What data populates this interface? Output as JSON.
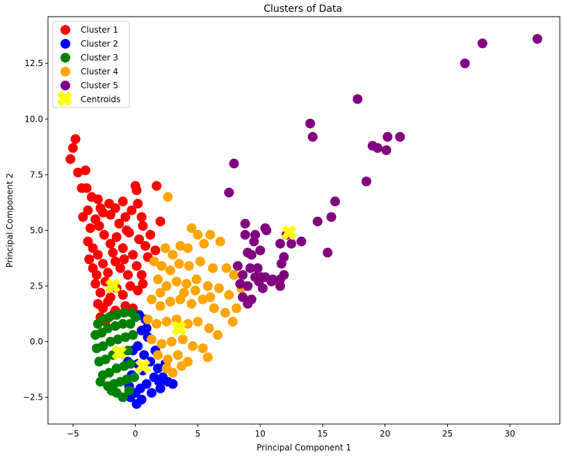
{
  "chart_data": {
    "type": "scatter",
    "title": "Clusters of Data",
    "xlabel": "Principal Component 1",
    "ylabel": "Principal Component 2",
    "xlim": [
      -7.0,
      34.0
    ],
    "ylim": [
      -3.7,
      14.6
    ],
    "xticks": [
      -5,
      0,
      5,
      10,
      15,
      20,
      25,
      30
    ],
    "xtick_labels": [
      "−5",
      "0",
      "5",
      "10",
      "15",
      "20",
      "25",
      "30"
    ],
    "yticks": [
      -2.5,
      0.0,
      2.5,
      5.0,
      7.5,
      10.0,
      12.5
    ],
    "ytick_labels": [
      "−2.5",
      "0.0",
      "2.5",
      "5.0",
      "7.5",
      "10.0",
      "12.5"
    ],
    "grid": false,
    "legend_position": "top-left",
    "series": [
      {
        "name": "Cluster 1",
        "color": "#ff0000",
        "points": [
          [
            -5.2,
            8.2
          ],
          [
            -5.0,
            8.7
          ],
          [
            -4.8,
            9.1
          ],
          [
            -4.6,
            7.6
          ],
          [
            -4.0,
            7.7
          ],
          [
            -4.3,
            6.9
          ],
          [
            -3.9,
            6.9
          ],
          [
            -3.5,
            6.5
          ],
          [
            -3.0,
            6.4
          ],
          [
            -2.8,
            6.0
          ],
          [
            -4.2,
            5.6
          ],
          [
            -3.8,
            5.9
          ],
          [
            -3.2,
            5.5
          ],
          [
            -2.6,
            5.8
          ],
          [
            -2.0,
            5.7
          ],
          [
            -1.6,
            6.0
          ],
          [
            -1.0,
            6.3
          ],
          [
            -0.8,
            5.6
          ],
          [
            -0.3,
            5.9
          ],
          [
            0.0,
            7.0
          ],
          [
            0.1,
            6.8
          ],
          [
            0.2,
            6.2
          ],
          [
            0.5,
            5.6
          ],
          [
            0.6,
            5.2
          ],
          [
            1.7,
            7.0
          ],
          [
            2.0,
            5.4
          ],
          [
            0.3,
            4.6
          ],
          [
            0.8,
            4.3
          ],
          [
            1.2,
            4.8
          ],
          [
            1.6,
            4.1
          ],
          [
            -3.8,
            4.5
          ],
          [
            -3.4,
            4.2
          ],
          [
            -3.0,
            3.9
          ],
          [
            -2.5,
            4.8
          ],
          [
            -2.0,
            4.4
          ],
          [
            -1.5,
            4.7
          ],
          [
            -1.0,
            4.2
          ],
          [
            -0.5,
            4.9
          ],
          [
            -0.2,
            3.9
          ],
          [
            -3.4,
            3.3
          ],
          [
            -3.1,
            3.0
          ],
          [
            -2.6,
            3.5
          ],
          [
            -2.2,
            3.1
          ],
          [
            -1.6,
            3.6
          ],
          [
            -1.2,
            3.3
          ],
          [
            -0.6,
            3.0
          ],
          [
            0.1,
            3.4
          ],
          [
            0.5,
            3.0
          ],
          [
            1.0,
            3.8
          ],
          [
            -3.2,
            2.6
          ],
          [
            -2.8,
            2.2
          ],
          [
            -2.4,
            2.7
          ],
          [
            -2.0,
            2.0
          ],
          [
            -1.5,
            2.4
          ],
          [
            -1.0,
            2.1
          ],
          [
            -0.4,
            2.5
          ],
          [
            0.2,
            2.3
          ],
          [
            0.6,
            2.6
          ],
          [
            -3.0,
            1.7
          ],
          [
            -2.6,
            1.5
          ],
          [
            -2.2,
            1.8
          ],
          [
            -1.6,
            1.4
          ],
          [
            -0.8,
            1.6
          ],
          [
            -0.2,
            1.5
          ],
          [
            -2.8,
            1.1
          ],
          [
            -2.4,
            0.9
          ],
          [
            -1.8,
            1.2
          ],
          [
            -3.6,
            5.1
          ],
          [
            -2.9,
            5.2
          ],
          [
            -1.3,
            5.3
          ],
          [
            -0.7,
            5.0
          ],
          [
            -2.1,
            6.2
          ],
          [
            -3.7,
            3.7
          ],
          [
            -1.8,
            4.0
          ],
          [
            -0.9,
            3.7
          ]
        ]
      },
      {
        "name": "Cluster 2",
        "color": "#0000ff",
        "points": [
          [
            0.3,
            1.2
          ],
          [
            0.8,
            1.0
          ],
          [
            0.5,
            0.5
          ],
          [
            1.0,
            0.2
          ],
          [
            0.2,
            -0.2
          ],
          [
            0.7,
            -0.6
          ],
          [
            1.2,
            -0.9
          ],
          [
            1.8,
            -1.2
          ],
          [
            2.2,
            -1.6
          ],
          [
            2.6,
            -1.8
          ],
          [
            3.0,
            -1.9
          ],
          [
            1.5,
            -1.6
          ],
          [
            0.9,
            -1.9
          ],
          [
            0.4,
            -2.1
          ],
          [
            0.0,
            -2.3
          ],
          [
            -0.4,
            -2.5
          ],
          [
            0.1,
            -2.8
          ],
          [
            0.5,
            -2.6
          ],
          [
            1.3,
            -2.3
          ],
          [
            2.0,
            -2.1
          ],
          [
            -0.3,
            -1.5
          ],
          [
            -0.6,
            -0.9
          ],
          [
            -0.2,
            -0.4
          ],
          [
            0.6,
            -1.3
          ],
          [
            1.6,
            -0.4
          ],
          [
            2.4,
            -1.0
          ],
          [
            0.9,
            0.6
          ],
          [
            -0.5,
            -2.0
          ],
          [
            1.9,
            -1.8
          ],
          [
            0.2,
            -1.0
          ]
        ]
      },
      {
        "name": "Cluster 3",
        "color": "#008000",
        "points": [
          [
            -3.0,
            0.8
          ],
          [
            -2.6,
            1.0
          ],
          [
            -2.1,
            1.1
          ],
          [
            -1.5,
            1.2
          ],
          [
            -0.9,
            1.3
          ],
          [
            -0.3,
            1.3
          ],
          [
            0.0,
            1.1
          ],
          [
            -3.2,
            0.3
          ],
          [
            -2.7,
            0.4
          ],
          [
            -2.2,
            0.6
          ],
          [
            -1.6,
            0.7
          ],
          [
            -1.0,
            0.8
          ],
          [
            -0.4,
            0.8
          ],
          [
            -3.1,
            -0.3
          ],
          [
            -2.6,
            -0.2
          ],
          [
            -2.0,
            0.0
          ],
          [
            -1.4,
            0.1
          ],
          [
            -0.8,
            0.2
          ],
          [
            -0.2,
            0.3
          ],
          [
            -2.9,
            -0.9
          ],
          [
            -2.4,
            -0.8
          ],
          [
            -1.8,
            -0.6
          ],
          [
            -1.2,
            -0.5
          ],
          [
            -0.6,
            -0.4
          ],
          [
            -2.6,
            -1.5
          ],
          [
            -2.1,
            -1.4
          ],
          [
            -1.5,
            -1.2
          ],
          [
            -0.9,
            -1.1
          ],
          [
            -0.4,
            -1.0
          ],
          [
            -2.2,
            -2.0
          ],
          [
            -1.7,
            -1.9
          ],
          [
            -1.2,
            -1.8
          ],
          [
            -0.7,
            -1.7
          ],
          [
            -1.5,
            -2.3
          ],
          [
            -1.0,
            -2.5
          ],
          [
            -0.5,
            -2.2
          ],
          [
            -0.1,
            -1.6
          ],
          [
            -2.8,
            -1.8
          ],
          [
            -1.9,
            -2.2
          ]
        ]
      },
      {
        "name": "Cluster 4",
        "color": "#ffa500",
        "points": [
          [
            2.6,
            6.5
          ],
          [
            4.5,
            5.1
          ],
          [
            5.0,
            4.8
          ],
          [
            6.0,
            4.8
          ],
          [
            6.8,
            4.5
          ],
          [
            5.5,
            4.4
          ],
          [
            4.2,
            4.2
          ],
          [
            3.6,
            4.3
          ],
          [
            2.4,
            4.2
          ],
          [
            3.0,
            3.9
          ],
          [
            1.5,
            3.6
          ],
          [
            2.1,
            3.4
          ],
          [
            2.8,
            3.2
          ],
          [
            3.5,
            3.5
          ],
          [
            4.3,
            3.4
          ],
          [
            5.2,
            3.6
          ],
          [
            6.2,
            3.3
          ],
          [
            7.3,
            3.3
          ],
          [
            7.9,
            3.0
          ],
          [
            8.5,
            2.4
          ],
          [
            1.8,
            2.8
          ],
          [
            2.5,
            2.5
          ],
          [
            3.3,
            2.7
          ],
          [
            4.1,
            2.6
          ],
          [
            4.9,
            2.8
          ],
          [
            5.8,
            2.5
          ],
          [
            6.7,
            2.4
          ],
          [
            7.5,
            2.1
          ],
          [
            8.1,
            1.5
          ],
          [
            1.3,
            1.9
          ],
          [
            2.0,
            1.6
          ],
          [
            2.8,
            1.8
          ],
          [
            3.6,
            1.9
          ],
          [
            4.5,
            1.7
          ],
          [
            5.4,
            1.9
          ],
          [
            6.3,
            1.5
          ],
          [
            7.2,
            1.3
          ],
          [
            7.8,
            0.9
          ],
          [
            1.0,
            1.0
          ],
          [
            1.7,
            0.8
          ],
          [
            2.5,
            0.9
          ],
          [
            3.3,
            1.0
          ],
          [
            4.2,
            0.8
          ],
          [
            5.0,
            0.9
          ],
          [
            5.9,
            0.6
          ],
          [
            6.6,
            0.3
          ],
          [
            1.3,
            0.1
          ],
          [
            2.1,
            -0.1
          ],
          [
            2.9,
            0.0
          ],
          [
            3.8,
            0.1
          ],
          [
            4.6,
            -0.2
          ],
          [
            5.4,
            -0.3
          ],
          [
            5.8,
            -0.7
          ],
          [
            1.8,
            -0.6
          ],
          [
            2.6,
            -0.8
          ],
          [
            3.4,
            -0.6
          ],
          [
            4.2,
            -0.9
          ],
          [
            2.5,
            -1.2
          ],
          [
            3.0,
            -1.4
          ],
          [
            3.7,
            -1.1
          ],
          [
            2.0,
            2.2
          ],
          [
            3.9,
            2.2
          ],
          [
            4.8,
            2.3
          ],
          [
            6.0,
            2.0
          ]
        ]
      },
      {
        "name": "Cluster 5",
        "color": "#800080",
        "points": [
          [
            32.2,
            13.6
          ],
          [
            27.8,
            13.4
          ],
          [
            26.4,
            12.5
          ],
          [
            17.8,
            10.9
          ],
          [
            14.0,
            9.8
          ],
          [
            14.2,
            9.2
          ],
          [
            20.2,
            9.2
          ],
          [
            21.2,
            9.2
          ],
          [
            19.0,
            8.8
          ],
          [
            19.4,
            8.7
          ],
          [
            20.1,
            8.6
          ],
          [
            7.9,
            8.0
          ],
          [
            18.5,
            7.2
          ],
          [
            7.5,
            6.7
          ],
          [
            16.0,
            6.3
          ],
          [
            15.7,
            5.6
          ],
          [
            14.6,
            5.4
          ],
          [
            8.8,
            5.3
          ],
          [
            10.4,
            5.1
          ],
          [
            10.5,
            5.0
          ],
          [
            12.1,
            4.8
          ],
          [
            13.3,
            4.5
          ],
          [
            11.6,
            4.4
          ],
          [
            12.5,
            4.4
          ],
          [
            8.8,
            4.8
          ],
          [
            9.6,
            4.8
          ],
          [
            9.5,
            4.5
          ],
          [
            10.0,
            4.1
          ],
          [
            9.0,
            4.0
          ],
          [
            11.9,
            3.8
          ],
          [
            9.3,
            3.9
          ],
          [
            15.4,
            4.0
          ],
          [
            11.7,
            3.5
          ],
          [
            8.2,
            3.4
          ],
          [
            9.2,
            3.3
          ],
          [
            9.8,
            3.3
          ],
          [
            8.6,
            3.0
          ],
          [
            9.6,
            2.9
          ],
          [
            10.4,
            2.9
          ],
          [
            11.0,
            2.8
          ],
          [
            11.6,
            2.8
          ],
          [
            11.9,
            3.0
          ],
          [
            8.4,
            2.6
          ],
          [
            9.0,
            2.5
          ],
          [
            9.9,
            2.7
          ],
          [
            10.2,
            2.4
          ],
          [
            11.6,
            2.5
          ],
          [
            8.6,
            2.0
          ],
          [
            9.3,
            1.9
          ],
          [
            9.0,
            1.7
          ],
          [
            10.9,
            2.7
          ],
          [
            10.1,
            2.9
          ]
        ]
      }
    ],
    "centroids": {
      "name": "Centroids",
      "color": "#ffff00",
      "marker": "X",
      "points": [
        [
          -1.8,
          2.5
        ],
        [
          -1.3,
          -0.5
        ],
        [
          0.6,
          -1.1
        ],
        [
          3.5,
          0.6
        ],
        [
          12.3,
          4.9
        ]
      ]
    }
  }
}
